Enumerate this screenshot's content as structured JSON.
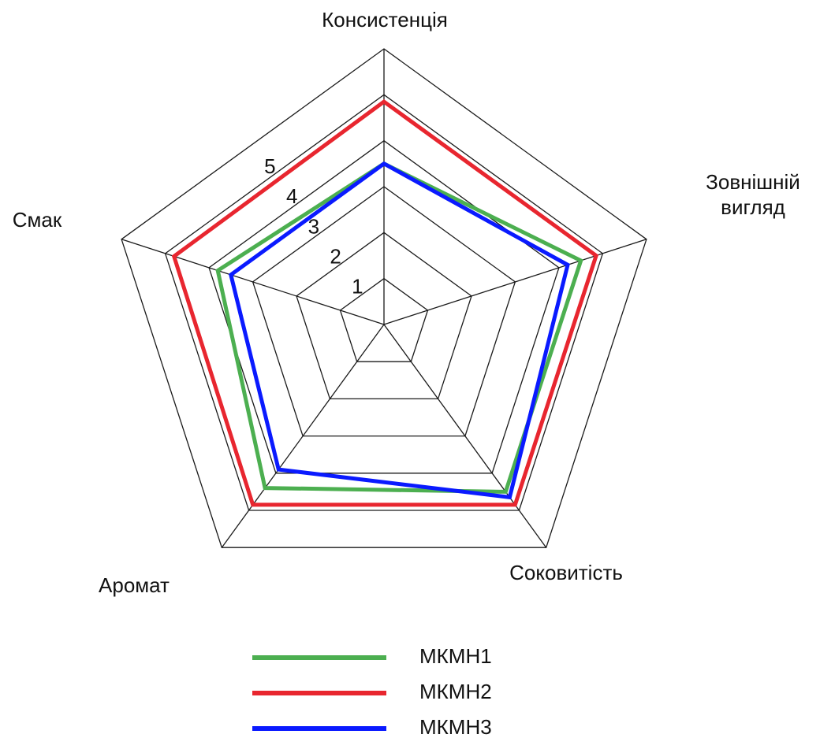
{
  "chart_data": {
    "type": "radar",
    "axes": [
      "Консистенція",
      "Зовнішній вигляд",
      "Соковитість",
      "Аромат",
      "Смак"
    ],
    "axis_label_lines": [
      [
        "Консистенція"
      ],
      [
        "Зовнішній",
        "вигляд"
      ],
      [
        "Соковитість"
      ],
      [
        "Аромат"
      ],
      [
        "Смак"
      ]
    ],
    "tick_labels": [
      "1",
      "2",
      "3",
      "4",
      "5"
    ],
    "r_range": [
      0,
      5
    ],
    "grid": true,
    "legend_position": "bottom-center",
    "series": [
      {
        "name": "МКМН1",
        "color": "#4caf50",
        "values": [
          3.5,
          4.5,
          4.5,
          4.4,
          3.8
        ]
      },
      {
        "name": "МКМН2",
        "color": "#e8262f",
        "values": [
          4.85,
          4.85,
          4.85,
          4.85,
          4.8
        ]
      },
      {
        "name": "МКМН3",
        "color": "#0a1aff",
        "values": [
          3.5,
          4.2,
          4.65,
          3.9,
          3.5
        ]
      }
    ]
  }
}
